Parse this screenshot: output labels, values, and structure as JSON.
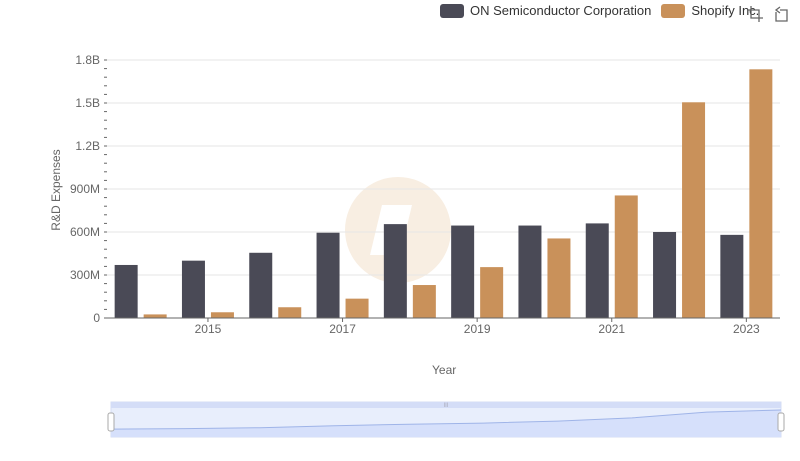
{
  "legend": {
    "items": [
      {
        "label": "ON Semiconductor Corporation",
        "color": "#4a4a56"
      },
      {
        "label": "Shopify Inc.",
        "color": "#c9915a"
      }
    ]
  },
  "toolbox": {
    "icons": [
      "zoom-icon",
      "restore-icon"
    ]
  },
  "chart_data": {
    "type": "bar",
    "categories": [
      "2014",
      "2015",
      "2016",
      "2017",
      "2018",
      "2019",
      "2020",
      "2021",
      "2022",
      "2023"
    ],
    "tick_labels": [
      "2015",
      "2017",
      "2019",
      "2021",
      "2023"
    ],
    "series": [
      {
        "name": "ON Semiconductor Corporation",
        "color": "#4a4a56",
        "values": [
          370000000,
          400000000,
          455000000,
          595000000,
          655000000,
          645000000,
          645000000,
          660000000,
          600000000,
          580000000
        ]
      },
      {
        "name": "Shopify Inc.",
        "color": "#c9915a",
        "values": [
          25000000,
          40000000,
          75000000,
          135000000,
          230000000,
          355000000,
          555000000,
          855000000,
          1505000000,
          1735000000
        ]
      }
    ],
    "xlabel": "Year",
    "ylabel": "R&D Expenses",
    "ylim": [
      0,
      1800000000
    ],
    "yticks": [
      {
        "value": 0,
        "label": "0"
      },
      {
        "value": 300000000,
        "label": "300M"
      },
      {
        "value": 600000000,
        "label": "600M"
      },
      {
        "value": 900000000,
        "label": "900M"
      },
      {
        "value": 1200000000,
        "label": "1.2B"
      },
      {
        "value": 1500000000,
        "label": "1.5B"
      },
      {
        "value": 1800000000,
        "label": "1.8B"
      }
    ],
    "grid": true,
    "legend_position": "top-right",
    "data_zoom": {
      "visible": true,
      "handle_label": "III"
    }
  }
}
